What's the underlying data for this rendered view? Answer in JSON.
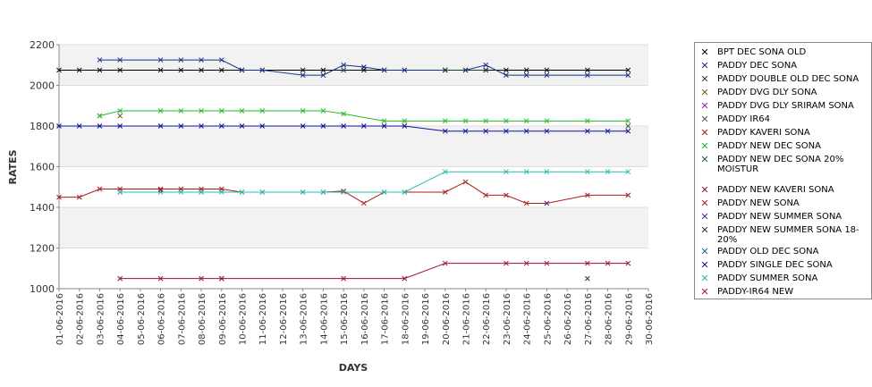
{
  "chart_data": {
    "type": "line",
    "title": "",
    "xlabel": "DAYS",
    "ylabel": "RATES",
    "ylim": [
      1000,
      2200
    ],
    "yticks": [
      "1000",
      "1200",
      "1400",
      "1600",
      "1800",
      "2000",
      "2200"
    ],
    "grid": "horizontal alternating bands",
    "legend_position": "right",
    "categories": [
      "01-06-2016",
      "02-06-2016",
      "03-06-2016",
      "04-06-2016",
      "05-06-2016",
      "06-06-2016",
      "07-06-2016",
      "08-06-2016",
      "09-06-2016",
      "10-06-2016",
      "11-06-2016",
      "12-06-2016",
      "13-06-2016",
      "14-06-2016",
      "15-06-2016",
      "16-06-2016",
      "17-06-2016",
      "18-06-2016",
      "19-06-2016",
      "20-06-2016",
      "21-06-2016",
      "22-06-2016",
      "23-06-2016",
      "24-06-2016",
      "25-06-2016",
      "26-06-2016",
      "27-06-2016",
      "28-06-2016",
      "29-06-2016",
      "30-06-2016"
    ],
    "series": [
      {
        "name": "BPT DEC SONA OLD",
        "color": "#000000",
        "points": [
          [
            0,
            2075
          ],
          [
            1,
            2075
          ],
          [
            2,
            2075
          ],
          [
            3,
            2075
          ],
          [
            5,
            2075
          ],
          [
            6,
            2075
          ],
          [
            7,
            2075
          ],
          [
            8,
            2075
          ],
          [
            9,
            2075
          ],
          [
            10,
            2075
          ],
          [
            12,
            2075
          ],
          [
            13,
            2075
          ],
          [
            14,
            2075
          ],
          [
            15,
            2075
          ],
          [
            16,
            2075
          ],
          [
            17,
            2075
          ],
          [
            19,
            2075
          ],
          [
            20,
            2075
          ],
          [
            21,
            2075
          ],
          [
            22,
            2075
          ],
          [
            23,
            2075
          ],
          [
            24,
            2075
          ],
          [
            26,
            2075
          ],
          [
            28,
            2075
          ]
        ]
      },
      {
        "name": "PADDY DEC SONA",
        "color": "#1a2f8c",
        "points": [
          [
            2,
            2125
          ],
          [
            3,
            2125
          ],
          [
            5,
            2125
          ],
          [
            6,
            2125
          ],
          [
            7,
            2125
          ],
          [
            8,
            2125
          ],
          [
            9,
            2075
          ],
          [
            10,
            2075
          ],
          [
            12,
            2050
          ],
          [
            13,
            2050
          ],
          [
            14,
            2100
          ],
          [
            15,
            2090
          ],
          [
            16,
            2075
          ],
          [
            17,
            2075
          ],
          [
            19,
            2075
          ],
          [
            20,
            2075
          ],
          [
            21,
            2100
          ],
          [
            22,
            2050
          ],
          [
            23,
            2050
          ],
          [
            24,
            2050
          ],
          [
            26,
            2050
          ],
          [
            28,
            2050
          ]
        ]
      },
      {
        "name": "PADDY DOUBLE OLD DEC SONA",
        "color": "#1f3b2a",
        "points": [
          [
            19,
            2075
          ],
          [
            21,
            2075
          ]
        ]
      },
      {
        "name": "PADDY DVG DLY SONA",
        "color": "#7a5a1a",
        "points": [
          [
            3,
            1850
          ]
        ]
      },
      {
        "name": "PADDY DVG DLY SRIRAM SONA",
        "color": "#a020c0",
        "points": [
          [
            2,
            1850
          ]
        ]
      },
      {
        "name": "PADDY IR64",
        "color": "#555555",
        "points": [
          [
            8,
            1050
          ]
        ]
      },
      {
        "name": "PADDY KAVERI SONA",
        "color": "#b01a1a",
        "points": [
          [
            0,
            1450
          ],
          [
            1,
            1450
          ],
          [
            2,
            1490
          ],
          [
            3,
            1490
          ],
          [
            5,
            1490
          ],
          [
            6,
            1490
          ],
          [
            7,
            1490
          ],
          [
            8,
            1490
          ],
          [
            9,
            1475
          ],
          [
            10,
            1475
          ],
          [
            12,
            1475
          ],
          [
            13,
            1475
          ],
          [
            14,
            1480
          ],
          [
            15,
            1420
          ],
          [
            16,
            1475
          ],
          [
            17,
            1475
          ],
          [
            19,
            1475
          ],
          [
            20,
            1525
          ],
          [
            21,
            1460
          ],
          [
            22,
            1460
          ],
          [
            23,
            1420
          ],
          [
            24,
            1420
          ],
          [
            26,
            1460
          ],
          [
            28,
            1460
          ]
        ]
      },
      {
        "name": "PADDY NEW DEC SONA",
        "color": "#22bb22",
        "points": [
          [
            2,
            1850
          ],
          [
            3,
            1875
          ],
          [
            5,
            1875
          ],
          [
            6,
            1875
          ],
          [
            7,
            1875
          ],
          [
            8,
            1875
          ],
          [
            9,
            1875
          ],
          [
            10,
            1875
          ],
          [
            12,
            1875
          ],
          [
            13,
            1875
          ],
          [
            14,
            1860
          ],
          [
            16,
            1825
          ],
          [
            17,
            1825
          ],
          [
            19,
            1825
          ],
          [
            20,
            1825
          ],
          [
            21,
            1825
          ],
          [
            22,
            1825
          ],
          [
            23,
            1825
          ],
          [
            24,
            1825
          ],
          [
            26,
            1825
          ],
          [
            28,
            1825
          ]
        ]
      },
      {
        "name": "PADDY NEW DEC SONA 20% MOISTUR",
        "color": "#2a6040",
        "points": [
          [
            28,
            1800
          ]
        ]
      },
      {
        "name": "PADDY NEW KAVERI SONA",
        "color": "#a01030",
        "points": [
          [
            3,
            1050
          ],
          [
            5,
            1050
          ],
          [
            7,
            1050
          ],
          [
            8,
            1050
          ],
          [
            14,
            1050
          ],
          [
            17,
            1050
          ],
          [
            19,
            1125
          ],
          [
            22,
            1125
          ],
          [
            23,
            1125
          ],
          [
            24,
            1125
          ],
          [
            26,
            1125
          ],
          [
            27,
            1125
          ],
          [
            28,
            1125
          ]
        ]
      },
      {
        "name": "PADDY NEW SONA",
        "color": "#c02020",
        "points": [
          [
            3,
            1475
          ],
          [
            7,
            1475
          ]
        ]
      },
      {
        "name": "PADDY NEW SUMMER SONA",
        "color": "#5a2aa0",
        "points": [
          [
            24,
            1420
          ]
        ]
      },
      {
        "name": "PADDY NEW SUMMER SONA 18-20%",
        "color": "#333333",
        "points": [
          [
            26,
            1050
          ]
        ]
      },
      {
        "name": "PADDY OLD DEC SONA",
        "color": "#1a6a8a",
        "points": [
          [
            14,
            2075
          ]
        ]
      },
      {
        "name": "PADDY SINGLE DEC SONA",
        "color": "#1010a0",
        "points": [
          [
            0,
            1800
          ],
          [
            1,
            1800
          ],
          [
            2,
            1800
          ],
          [
            3,
            1800
          ],
          [
            5,
            1800
          ],
          [
            6,
            1800
          ],
          [
            7,
            1800
          ],
          [
            8,
            1800
          ],
          [
            9,
            1800
          ],
          [
            10,
            1800
          ],
          [
            12,
            1800
          ],
          [
            13,
            1800
          ],
          [
            14,
            1800
          ],
          [
            15,
            1800
          ],
          [
            16,
            1800
          ],
          [
            17,
            1800
          ],
          [
            19,
            1775
          ],
          [
            20,
            1775
          ],
          [
            21,
            1775
          ],
          [
            22,
            1775
          ],
          [
            23,
            1775
          ],
          [
            24,
            1775
          ],
          [
            26,
            1775
          ],
          [
            27,
            1775
          ],
          [
            28,
            1775
          ]
        ]
      },
      {
        "name": "PADDY SUMMER SONA",
        "color": "#20c0b0",
        "points": [
          [
            3,
            1475
          ],
          [
            5,
            1475
          ],
          [
            6,
            1475
          ],
          [
            7,
            1475
          ],
          [
            8,
            1475
          ],
          [
            9,
            1475
          ],
          [
            10,
            1475
          ],
          [
            12,
            1475
          ],
          [
            13,
            1475
          ],
          [
            14,
            1475
          ],
          [
            16,
            1475
          ],
          [
            17,
            1475
          ],
          [
            19,
            1575
          ],
          [
            22,
            1575
          ],
          [
            23,
            1575
          ],
          [
            24,
            1575
          ],
          [
            26,
            1575
          ],
          [
            27,
            1575
          ],
          [
            28,
            1575
          ]
        ]
      },
      {
        "name": "PADDY-IR64 NEW",
        "color": "#c01040",
        "points": [
          [
            5,
            1485
          ]
        ]
      }
    ]
  },
  "legend": {
    "items": [
      "BPT DEC SONA OLD",
      "PADDY DEC SONA",
      "PADDY DOUBLE OLD DEC SONA",
      "PADDY DVG DLY SONA",
      "PADDY DVG DLY SRIRAM SONA",
      "PADDY IR64",
      "PADDY KAVERI SONA",
      "PADDY NEW DEC SONA",
      "PADDY NEW DEC SONA 20% MOISTUR",
      "PADDY NEW KAVERI SONA",
      "PADDY NEW SONA",
      "PADDY NEW SUMMER SONA",
      "PADDY NEW SUMMER SONA 18-20%",
      "PADDY OLD DEC SONA",
      "PADDY SINGLE DEC SONA",
      "PADDY SUMMER SONA",
      "PADDY-IR64 NEW"
    ]
  }
}
